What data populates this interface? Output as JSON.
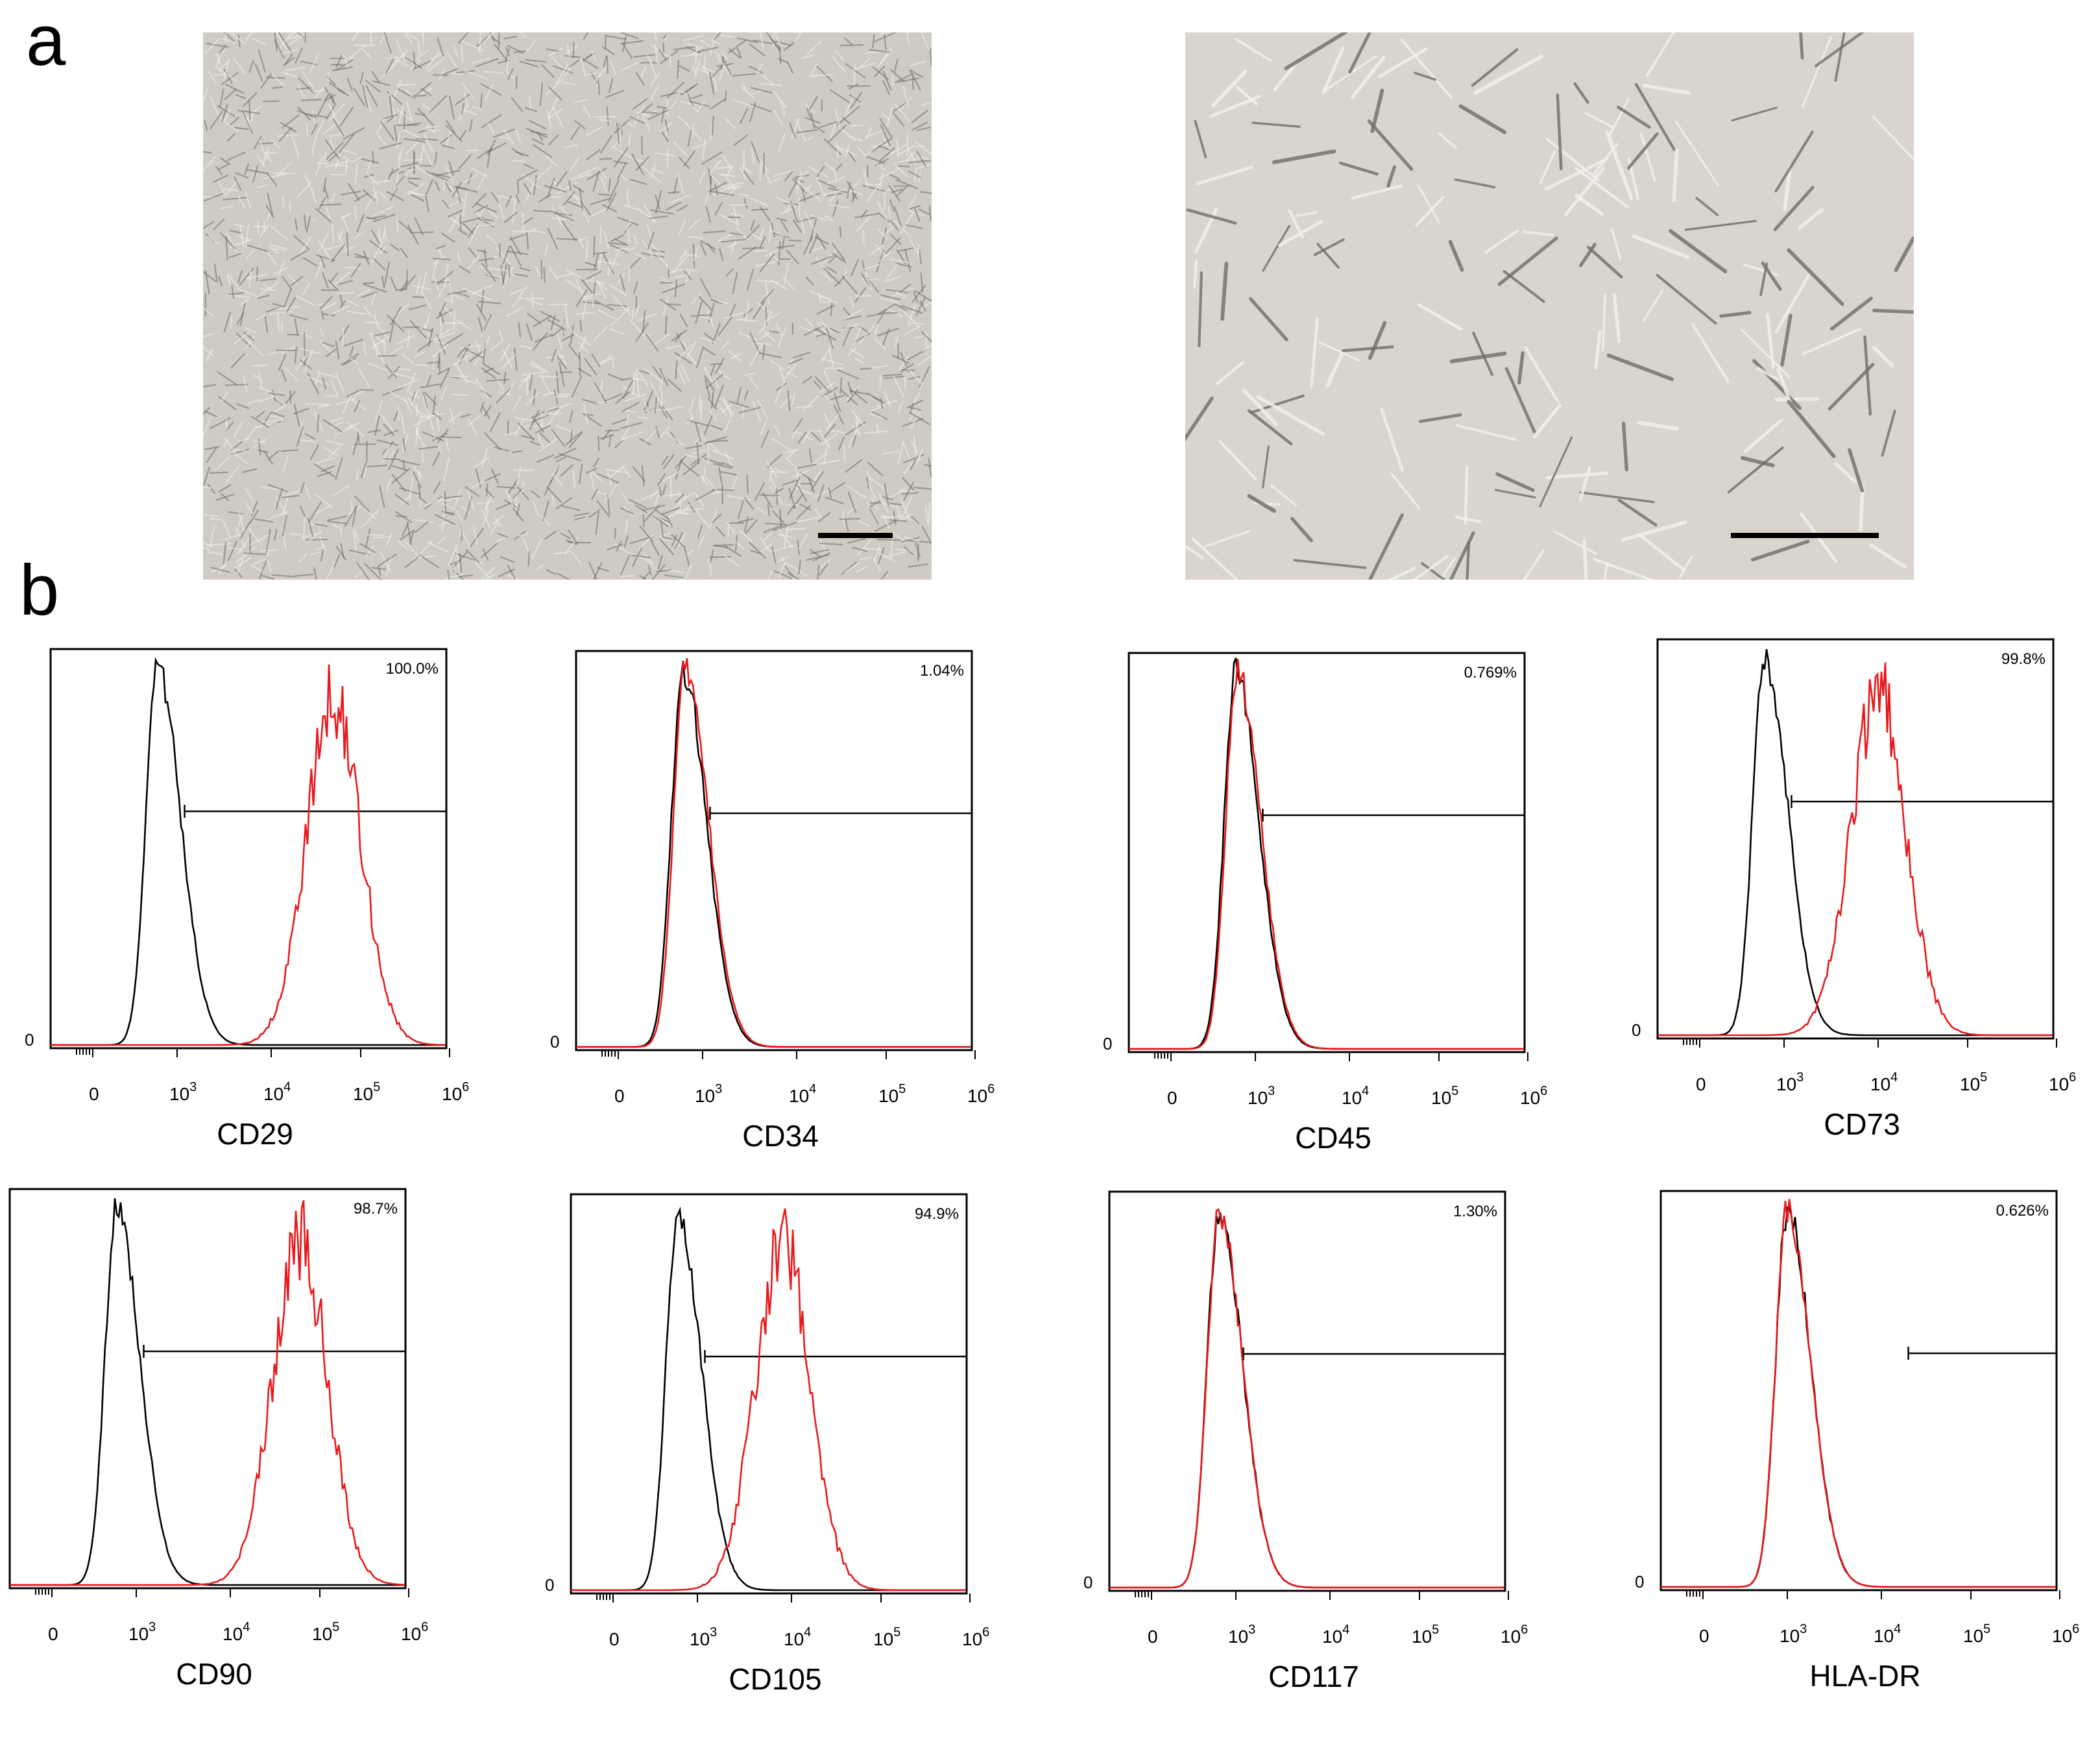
{
  "panel_labels": {
    "a": "a",
    "b": "b"
  },
  "colors": {
    "isotype": "#000000",
    "marker": "#e8191c",
    "frame": "#000000",
    "micrograph_bg": "#d9d4cc"
  },
  "micrographs": [
    {
      "name": "confluent-culture",
      "scale_bar": true,
      "appearance": "dense confluent spindle-shaped cells, phase contrast"
    },
    {
      "name": "sparse-culture",
      "scale_bar": true,
      "appearance": "sparse fibroblast-like cells, phase contrast"
    }
  ],
  "chart_data": [
    {
      "type": "histogram-overlay",
      "marker": "CD29",
      "percent": "100.0%",
      "x_ticks": [
        "0",
        "10^3",
        "10^4",
        "10^5",
        "10^6"
      ],
      "x_scale": "log (biexponential)",
      "y_tick": "0",
      "series": [
        {
          "name": "",
          "color": "#000000",
          "peak_x": 200
        },
        {
          "name": "",
          "color": "#e8191c",
          "peak_x": 50000
        }
      ],
      "gate_start": 1200
    },
    {
      "type": "histogram-overlay",
      "marker": "CD34",
      "percent": "1.04%",
      "x_ticks": [
        "0",
        "10^3",
        "10^4",
        "10^5",
        "10^6"
      ],
      "x_scale": "log (biexponential)",
      "y_tick": "0",
      "series": [
        {
          "name": "",
          "color": "#000000",
          "peak_x": 200
        },
        {
          "name": "",
          "color": "#e8191c",
          "peak_x": 240
        }
      ],
      "gate_start": 1200
    },
    {
      "type": "histogram-overlay",
      "marker": "CD45",
      "percent": "0.769%",
      "x_ticks": [
        "0",
        "10^3",
        "10^4",
        "10^5",
        "10^6"
      ],
      "x_scale": "log (biexponential)",
      "y_tick": "0",
      "series": [
        {
          "name": "",
          "color": "#000000",
          "peak_x": 200
        },
        {
          "name": "",
          "color": "#e8191c",
          "peak_x": 230
        }
      ],
      "gate_start": 1200
    },
    {
      "type": "histogram-overlay",
      "marker": "CD73",
      "percent": "99.8%",
      "x_ticks": [
        "0",
        "10^3",
        "10^4",
        "10^5",
        "10^6"
      ],
      "x_scale": "log (biexponential)",
      "y_tick": "0",
      "series": [
        {
          "name": "",
          "color": "#000000",
          "peak_x": 200
        },
        {
          "name": "",
          "color": "#e8191c",
          "peak_x": 10000
        }
      ],
      "gate_start": 1200
    },
    {
      "type": "histogram-overlay",
      "marker": "CD90",
      "percent": "98.7%",
      "x_ticks": [
        "0",
        "10^3",
        "10^4",
        "10^5",
        "10^6"
      ],
      "x_scale": "log (biexponential)",
      "y_tick": "0",
      "series": [
        {
          "name": "",
          "color": "#000000",
          "peak_x": 200
        },
        {
          "name": "",
          "color": "#e8191c",
          "peak_x": 60000
        }
      ],
      "gate_start": 1200
    },
    {
      "type": "histogram-overlay",
      "marker": "CD105",
      "percent": "94.9%",
      "x_ticks": [
        "0",
        "10^3",
        "10^4",
        "10^5",
        "10^6"
      ],
      "x_scale": "log (biexponential)",
      "y_tick": "0",
      "series": [
        {
          "name": "",
          "color": "#000000",
          "peak_x": 200
        },
        {
          "name": "",
          "color": "#e8191c",
          "peak_x": 8000
        }
      ],
      "gate_start": 1200
    },
    {
      "type": "histogram-overlay",
      "marker": "CD117",
      "percent": "1.30%",
      "x_ticks": [
        "0",
        "10^3",
        "10^4",
        "10^5",
        "10^6"
      ],
      "x_scale": "log (biexponential)",
      "y_tick": "0",
      "series": [
        {
          "name": "",
          "color": "#000000",
          "peak_x": 250
        },
        {
          "name": "",
          "color": "#e8191c",
          "peak_x": 250
        }
      ],
      "gate_start": 1200
    },
    {
      "type": "histogram-overlay",
      "marker": "HLA-DR",
      "percent": "0.626%",
      "x_ticks": [
        "0",
        "10^3",
        "10^4",
        "10^5",
        "10^6"
      ],
      "x_scale": "log (biexponential)",
      "y_tick": "0",
      "series": [
        {
          "name": "",
          "color": "#000000",
          "peak_x": 1000
        },
        {
          "name": "",
          "color": "#e8191c",
          "peak_x": 1000
        }
      ],
      "gate_start": 20000
    }
  ]
}
